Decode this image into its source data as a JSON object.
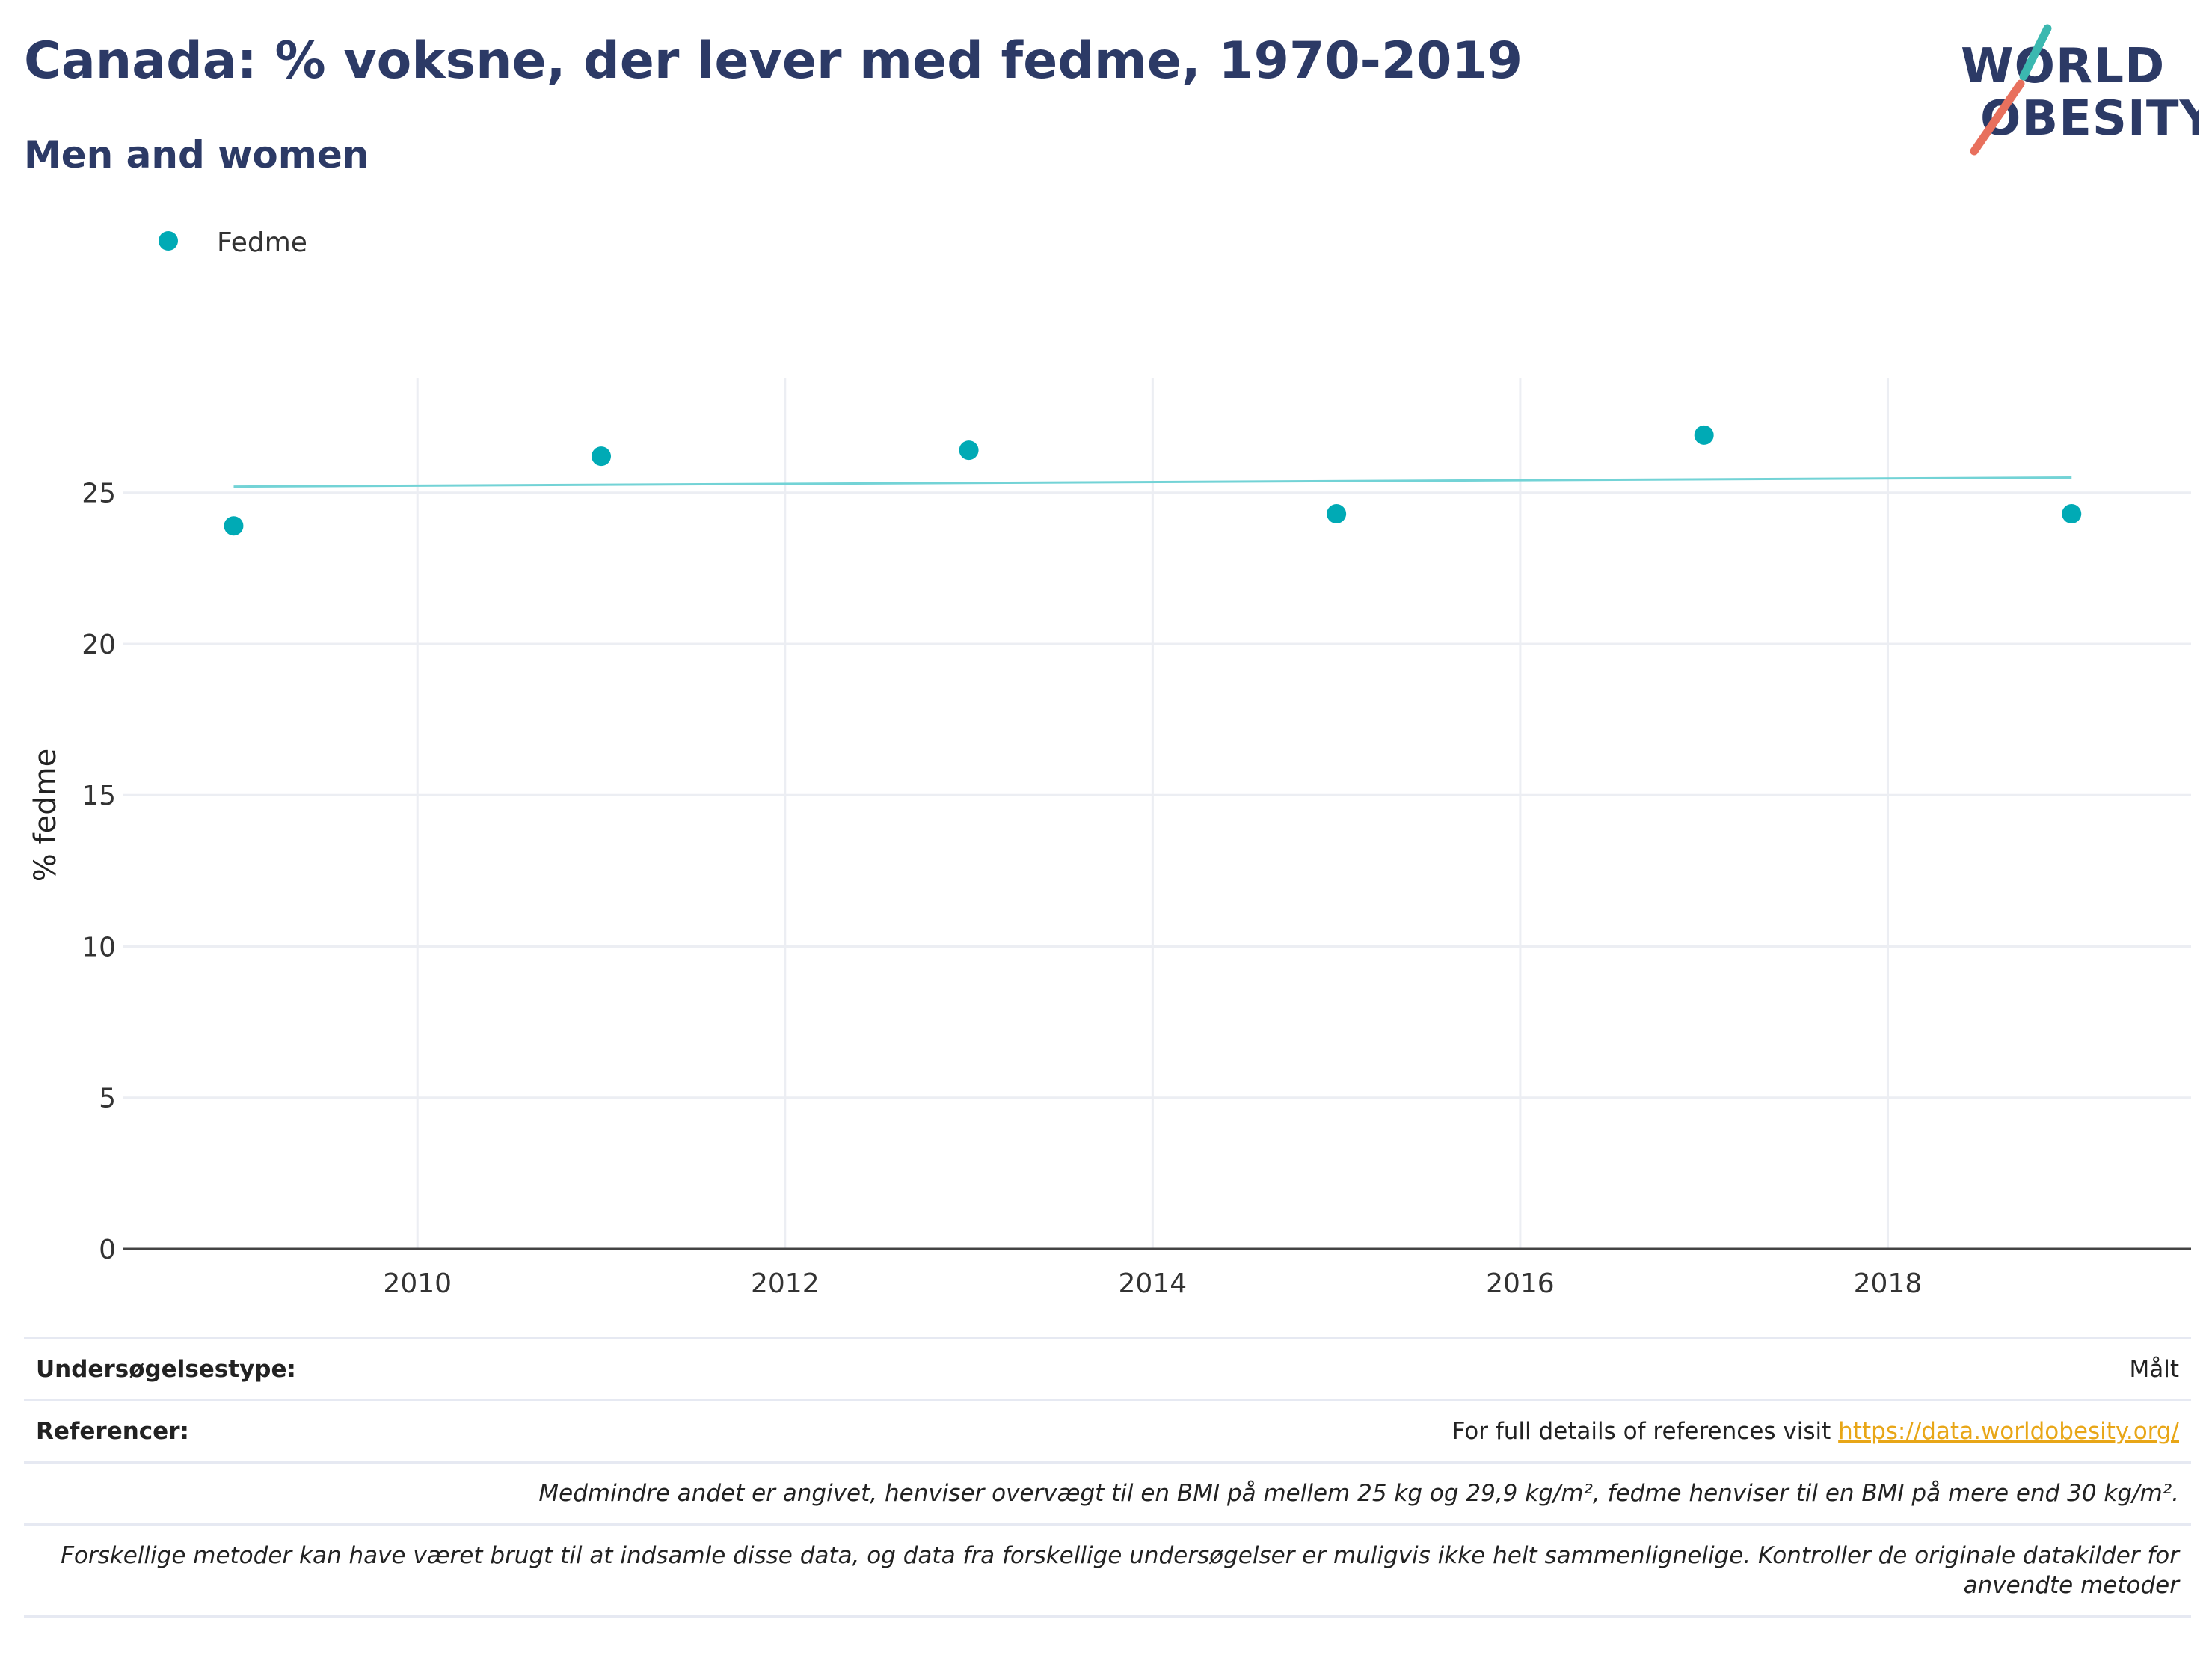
{
  "title": "Canada: % voksne, der lever med fedme, 1970-2019",
  "subtitle": "Men and women",
  "logo": {
    "line1": "WORLD",
    "line2": "OBESITY",
    "accent_top": "#3bb8b0",
    "accent_bottom": "#e8705d",
    "color": "#2c3a66"
  },
  "chart_data": {
    "type": "scatter",
    "series": [
      {
        "name": "Fedme",
        "color": "#00aab5",
        "x": [
          2009,
          2011,
          2013,
          2015,
          2017,
          2019
        ],
        "y": [
          23.9,
          26.2,
          26.4,
          24.3,
          26.9,
          24.3
        ]
      }
    ],
    "trendline": {
      "color": "#73d3d6",
      "x": [
        2009,
        2019
      ],
      "y": [
        25.2,
        25.5
      ]
    },
    "xlim": [
      2008.4,
      2019.65
    ],
    "ylim": [
      0,
      28.8
    ],
    "x_ticks": [
      2010,
      2012,
      2014,
      2016,
      2018
    ],
    "y_ticks": [
      0,
      5,
      10,
      15,
      20,
      25
    ],
    "ylabel": "% fedme",
    "xlabel": "",
    "grid": true,
    "legend_position": "top-left"
  },
  "info": {
    "survey_type_label": "Undersøgelsestype:",
    "survey_type_value": "Målt",
    "references_label": "Referencer:",
    "references_text": "For full details of references visit ",
    "references_link": "https://data.worldobesity.org/",
    "bmi_note": "Medmindre andet er angivet, henviser overvægt til en BMI på mellem 25 kg og 29,9 kg/m², fedme henviser til en BMI på mere end 30 kg/m².",
    "methods_note": "Forskellige metoder kan have været brugt til at indsamle disse data, og data fra forskellige undersøgelser er muligvis ikke helt sammenlignelige. Kontroller de originale datakilder for anvendte metoder"
  }
}
